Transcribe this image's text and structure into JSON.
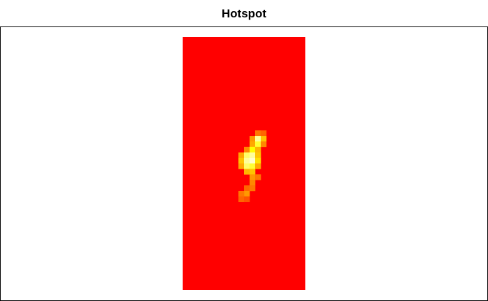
{
  "chart_data": {
    "type": "heatmap",
    "title": "Hotspot",
    "xlabel": "",
    "ylabel": "",
    "grid": false,
    "legend": "none",
    "cols": 22,
    "rows": 46,
    "background_value": 0,
    "colors": {
      "low": "#ff0000",
      "mid": "#ff9900",
      "high": "#ffff00",
      "peak": "#ffffcc"
    },
    "hotspots": [
      {
        "col": 13,
        "row": 17,
        "value": 0.35
      },
      {
        "col": 14,
        "row": 17,
        "value": 0.3
      },
      {
        "col": 12,
        "row": 18,
        "value": 0.45
      },
      {
        "col": 13,
        "row": 18,
        "value": 0.95
      },
      {
        "col": 14,
        "row": 18,
        "value": 0.6
      },
      {
        "col": 12,
        "row": 19,
        "value": 0.5
      },
      {
        "col": 13,
        "row": 19,
        "value": 0.85
      },
      {
        "col": 14,
        "row": 19,
        "value": 0.4
      },
      {
        "col": 11,
        "row": 20,
        "value": 0.4
      },
      {
        "col": 12,
        "row": 20,
        "value": 0.8
      },
      {
        "col": 13,
        "row": 20,
        "value": 0.55
      },
      {
        "col": 10,
        "row": 21,
        "value": 0.5
      },
      {
        "col": 11,
        "row": 21,
        "value": 0.9
      },
      {
        "col": 12,
        "row": 21,
        "value": 0.95
      },
      {
        "col": 13,
        "row": 21,
        "value": 0.6
      },
      {
        "col": 10,
        "row": 22,
        "value": 0.6
      },
      {
        "col": 11,
        "row": 22,
        "value": 0.95
      },
      {
        "col": 12,
        "row": 22,
        "value": 1.0
      },
      {
        "col": 13,
        "row": 22,
        "value": 0.7
      },
      {
        "col": 10,
        "row": 23,
        "value": 0.5
      },
      {
        "col": 11,
        "row": 23,
        "value": 0.9
      },
      {
        "col": 12,
        "row": 23,
        "value": 0.85
      },
      {
        "col": 13,
        "row": 23,
        "value": 0.5
      },
      {
        "col": 11,
        "row": 24,
        "value": 0.55
      },
      {
        "col": 12,
        "row": 24,
        "value": 0.6
      },
      {
        "col": 12,
        "row": 25,
        "value": 0.45
      },
      {
        "col": 13,
        "row": 25,
        "value": 0.35
      },
      {
        "col": 12,
        "row": 26,
        "value": 0.4
      },
      {
        "col": 11,
        "row": 27,
        "value": 0.3
      },
      {
        "col": 12,
        "row": 27,
        "value": 0.35
      },
      {
        "col": 11,
        "row": 28,
        "value": 0.45
      },
      {
        "col": 10,
        "row": 28,
        "value": 0.35
      },
      {
        "col": 10,
        "row": 29,
        "value": 0.3
      },
      {
        "col": 11,
        "row": 29,
        "value": 0.25
      }
    ]
  }
}
